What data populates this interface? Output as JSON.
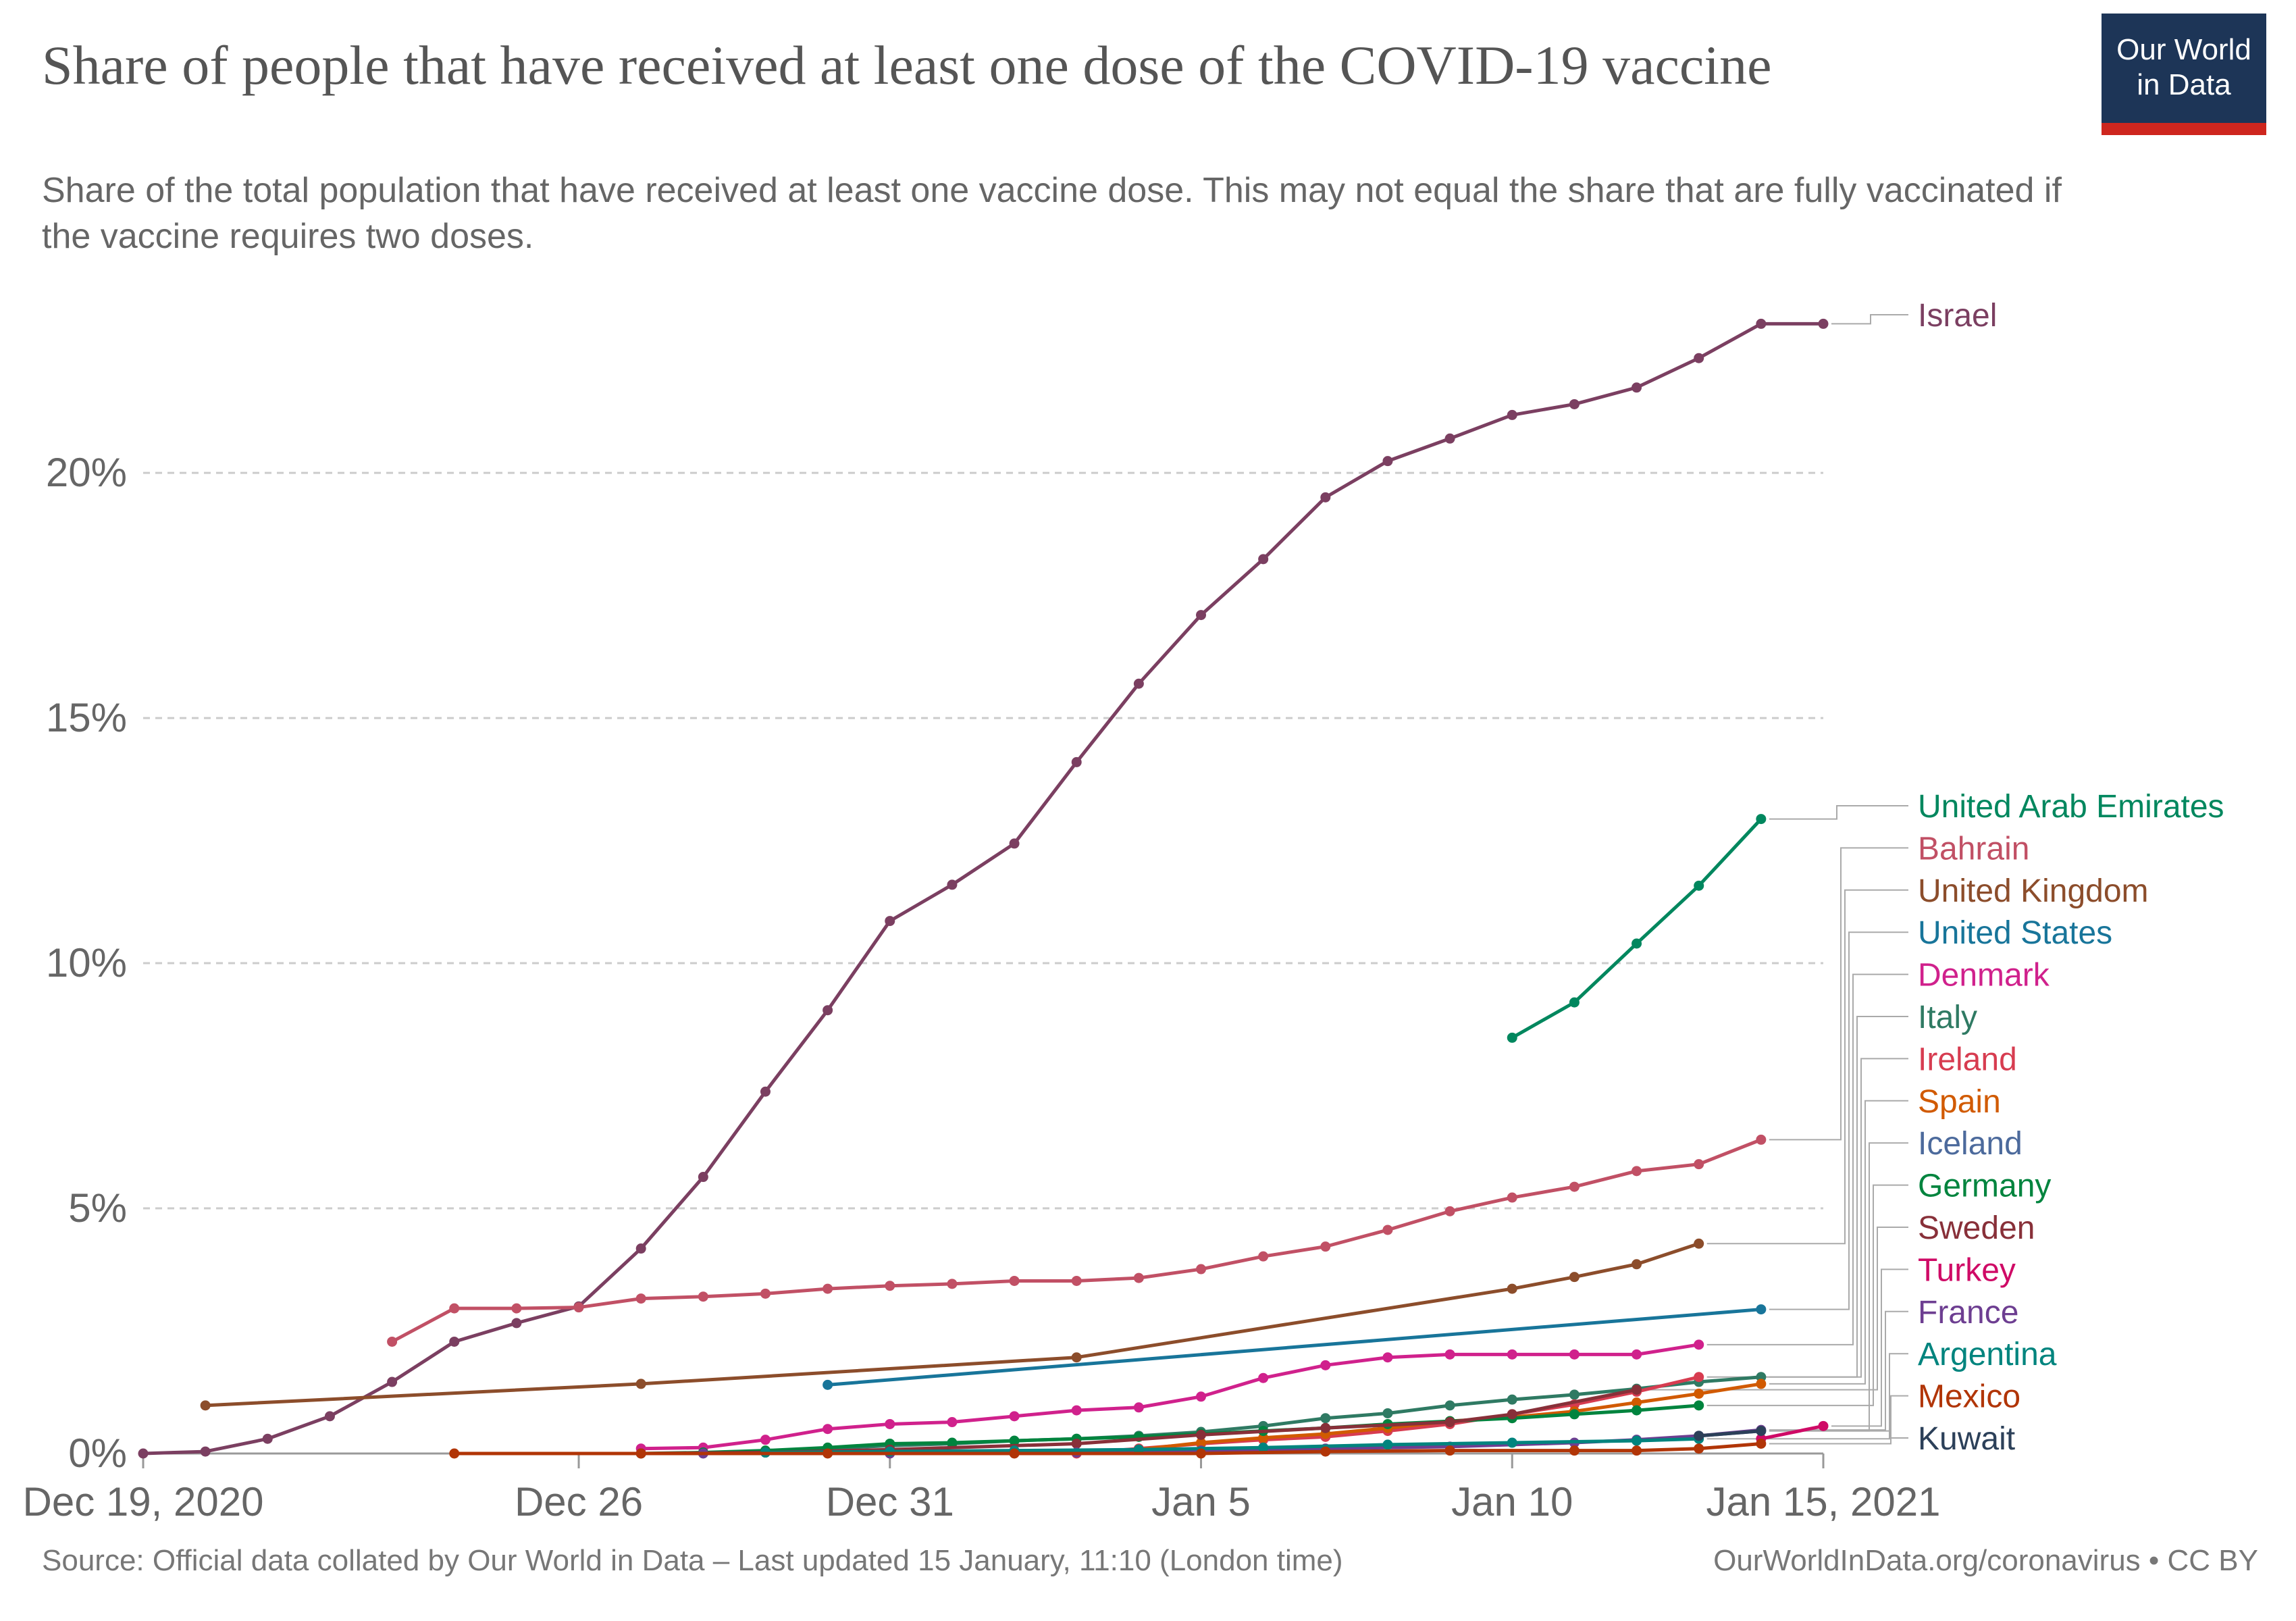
{
  "title": "Share of people that have received at least one dose of the COVID-19 vaccine",
  "subtitle": "Share of the total population that have received at least one vaccine dose. This may not equal the share that are fully vaccinated if the vaccine requires two doses.",
  "logo": {
    "line1": "Our World",
    "line2": "in Data"
  },
  "footer": {
    "source": "Source: Official data collated by Our World in Data – Last updated 15 January, 11:10 (London time)",
    "license": "OurWorldInData.org/coronavirus • CC BY"
  },
  "chart_data": {
    "type": "line",
    "x_range": [
      "2020-12-19",
      "2021-01-15"
    ],
    "x_ticks": [
      {
        "date": "2020-12-19",
        "label": "Dec 19, 2020"
      },
      {
        "date": "2020-12-26",
        "label": "Dec 26"
      },
      {
        "date": "2020-12-31",
        "label": "Dec 31"
      },
      {
        "date": "2021-01-05",
        "label": "Jan 5"
      },
      {
        "date": "2021-01-10",
        "label": "Jan 10"
      },
      {
        "date": "2021-01-15",
        "label": "Jan 15, 2021"
      }
    ],
    "ylim": [
      0,
      23.5
    ],
    "y_ticks": [
      {
        "value": 0,
        "label": "0%"
      },
      {
        "value": 5,
        "label": "5%"
      },
      {
        "value": 10,
        "label": "10%"
      },
      {
        "value": 15,
        "label": "15%"
      },
      {
        "value": 20,
        "label": "20%"
      }
    ],
    "grid": "horizontal dashed",
    "legend": "right, labels at line ends",
    "series": [
      {
        "name": "Israel",
        "color": "#7b3f61",
        "points": [
          [
            "2020-12-19",
            0.0
          ],
          [
            "2020-12-20",
            0.04
          ],
          [
            "2020-12-21",
            0.3
          ],
          [
            "2020-12-22",
            0.76
          ],
          [
            "2020-12-23",
            1.46
          ],
          [
            "2020-12-24",
            2.28
          ],
          [
            "2020-12-25",
            2.66
          ],
          [
            "2020-12-26",
            3.0
          ],
          [
            "2020-12-27",
            4.18
          ],
          [
            "2020-12-28",
            5.64
          ],
          [
            "2020-12-29",
            7.38
          ],
          [
            "2020-12-30",
            9.04
          ],
          [
            "2020-12-31",
            10.86
          ],
          [
            "2021-01-01",
            11.6
          ],
          [
            "2021-01-02",
            12.44
          ],
          [
            "2021-01-03",
            14.1
          ],
          [
            "2021-01-04",
            15.7
          ],
          [
            "2021-01-05",
            17.1
          ],
          [
            "2021-01-06",
            18.24
          ],
          [
            "2021-01-07",
            19.5
          ],
          [
            "2021-01-08",
            20.24
          ],
          [
            "2021-01-09",
            20.7
          ],
          [
            "2021-01-10",
            21.18
          ],
          [
            "2021-01-11",
            21.4
          ],
          [
            "2021-01-12",
            21.74
          ],
          [
            "2021-01-13",
            22.34
          ],
          [
            "2021-01-14",
            23.04
          ],
          [
            "2021-01-15",
            23.04
          ]
        ]
      },
      {
        "name": "United Arab Emirates",
        "color": "#00875e",
        "points": [
          [
            "2021-01-10",
            8.48
          ],
          [
            "2021-01-11",
            9.2
          ],
          [
            "2021-01-12",
            10.4
          ],
          [
            "2021-01-13",
            11.58
          ],
          [
            "2021-01-14",
            12.94
          ]
        ]
      },
      {
        "name": "Bahrain",
        "color": "#c15065",
        "points": [
          [
            "2020-12-23",
            2.28
          ],
          [
            "2020-12-24",
            2.96
          ],
          [
            "2020-12-25",
            2.96
          ],
          [
            "2020-12-26",
            2.98
          ],
          [
            "2020-12-27",
            3.16
          ],
          [
            "2020-12-28",
            3.2
          ],
          [
            "2020-12-29",
            3.26
          ],
          [
            "2020-12-30",
            3.36
          ],
          [
            "2020-12-31",
            3.42
          ],
          [
            "2021-01-01",
            3.46
          ],
          [
            "2021-01-02",
            3.52
          ],
          [
            "2021-01-03",
            3.52
          ],
          [
            "2021-01-04",
            3.58
          ],
          [
            "2021-01-05",
            3.76
          ],
          [
            "2021-01-06",
            4.02
          ],
          [
            "2021-01-07",
            4.22
          ],
          [
            "2021-01-08",
            4.56
          ],
          [
            "2021-01-09",
            4.94
          ],
          [
            "2021-01-10",
            5.22
          ],
          [
            "2021-01-11",
            5.44
          ],
          [
            "2021-01-12",
            5.76
          ],
          [
            "2021-01-13",
            5.9
          ],
          [
            "2021-01-14",
            6.4
          ]
        ]
      },
      {
        "name": "United Kingdom",
        "color": "#8c4d2b",
        "points": [
          [
            "2020-12-20",
            0.98
          ],
          [
            "2020-12-27",
            1.42
          ],
          [
            "2021-01-03",
            1.96
          ],
          [
            "2021-01-10",
            3.36
          ],
          [
            "2021-01-11",
            3.6
          ],
          [
            "2021-01-12",
            3.86
          ],
          [
            "2021-01-13",
            4.28
          ]
        ]
      },
      {
        "name": "United States",
        "color": "#18759a",
        "points": [
          [
            "2020-12-30",
            1.4
          ],
          [
            "2021-01-14",
            2.94
          ]
        ]
      },
      {
        "name": "Denmark",
        "color": "#d0218c",
        "points": [
          [
            "2020-12-27",
            0.1
          ],
          [
            "2020-12-28",
            0.12
          ],
          [
            "2020-12-29",
            0.28
          ],
          [
            "2020-12-30",
            0.5
          ],
          [
            "2020-12-31",
            0.6
          ],
          [
            "2021-01-01",
            0.64
          ],
          [
            "2021-01-02",
            0.76
          ],
          [
            "2021-01-03",
            0.88
          ],
          [
            "2021-01-04",
            0.94
          ],
          [
            "2021-01-05",
            1.16
          ],
          [
            "2021-01-06",
            1.54
          ],
          [
            "2021-01-07",
            1.8
          ],
          [
            "2021-01-08",
            1.96
          ],
          [
            "2021-01-09",
            2.02
          ],
          [
            "2021-01-10",
            2.02
          ],
          [
            "2021-01-11",
            2.02
          ],
          [
            "2021-01-12",
            2.02
          ],
          [
            "2021-01-13",
            2.22
          ]
        ]
      },
      {
        "name": "Italy",
        "color": "#2f7a63",
        "points": [
          [
            "2020-12-29",
            0.02
          ],
          [
            "2020-12-30",
            0.1
          ],
          [
            "2020-12-31",
            0.16
          ],
          [
            "2021-01-01",
            0.2
          ],
          [
            "2021-01-02",
            0.26
          ],
          [
            "2021-01-03",
            0.3
          ],
          [
            "2021-01-04",
            0.36
          ],
          [
            "2021-01-05",
            0.44
          ],
          [
            "2021-01-06",
            0.56
          ],
          [
            "2021-01-07",
            0.72
          ],
          [
            "2021-01-08",
            0.82
          ],
          [
            "2021-01-09",
            0.98
          ],
          [
            "2021-01-10",
            1.1
          ],
          [
            "2021-01-11",
            1.2
          ],
          [
            "2021-01-12",
            1.32
          ],
          [
            "2021-01-13",
            1.46
          ],
          [
            "2021-01-14",
            1.56
          ]
        ]
      },
      {
        "name": "Ireland",
        "color": "#d73c50",
        "points": [
          [
            "2021-01-03",
            0.0
          ],
          [
            "2021-01-04",
            0.1
          ],
          [
            "2021-01-05",
            0.2
          ],
          [
            "2021-01-06",
            0.28
          ],
          [
            "2021-01-07",
            0.34
          ],
          [
            "2021-01-08",
            0.46
          ],
          [
            "2021-01-09",
            0.6
          ],
          [
            "2021-01-10",
            0.8
          ],
          [
            "2021-01-11",
            1.0
          ],
          [
            "2021-01-12",
            1.26
          ],
          [
            "2021-01-13",
            1.56
          ]
        ]
      },
      {
        "name": "Spain",
        "color": "#d15a00",
        "points": [
          [
            "2021-01-04",
            0.08
          ],
          [
            "2021-01-05",
            0.22
          ],
          [
            "2021-01-06",
            0.32
          ],
          [
            "2021-01-07",
            0.4
          ],
          [
            "2021-01-08",
            0.52
          ],
          [
            "2021-01-09",
            0.66
          ],
          [
            "2021-01-10",
            0.74
          ],
          [
            "2021-01-11",
            0.86
          ],
          [
            "2021-01-12",
            1.04
          ],
          [
            "2021-01-13",
            1.22
          ],
          [
            "2021-01-14",
            1.42
          ]
        ]
      },
      {
        "name": "Iceland",
        "color": "#4c6a9c",
        "points": [
          [
            "2021-01-13",
            0.36
          ],
          [
            "2021-01-14",
            0.46
          ]
        ]
      },
      {
        "name": "Germany",
        "color": "#00843e",
        "points": [
          [
            "2020-12-27",
            0.0
          ],
          [
            "2020-12-28",
            0.02
          ],
          [
            "2020-12-29",
            0.06
          ],
          [
            "2020-12-30",
            0.12
          ],
          [
            "2020-12-31",
            0.2
          ],
          [
            "2021-01-01",
            0.22
          ],
          [
            "2021-01-02",
            0.26
          ],
          [
            "2021-01-03",
            0.3
          ],
          [
            "2021-01-04",
            0.34
          ],
          [
            "2021-01-05",
            0.4
          ],
          [
            "2021-01-06",
            0.46
          ],
          [
            "2021-01-07",
            0.52
          ],
          [
            "2021-01-08",
            0.6
          ],
          [
            "2021-01-09",
            0.66
          ],
          [
            "2021-01-10",
            0.72
          ],
          [
            "2021-01-11",
            0.8
          ],
          [
            "2021-01-12",
            0.88
          ],
          [
            "2021-01-13",
            0.98
          ]
        ]
      },
      {
        "name": "Sweden",
        "color": "#883039",
        "points": [
          [
            "2020-12-27",
            0.0
          ],
          [
            "2020-12-29",
            0.02
          ],
          [
            "2020-12-31",
            0.08
          ],
          [
            "2021-01-03",
            0.2
          ],
          [
            "2021-01-05",
            0.38
          ],
          [
            "2021-01-07",
            0.52
          ],
          [
            "2021-01-09",
            0.64
          ],
          [
            "2021-01-10",
            0.8
          ],
          [
            "2021-01-12",
            1.3
          ]
        ]
      },
      {
        "name": "Turkey",
        "color": "#cf0a66",
        "points": [
          [
            "2021-01-14",
            0.3
          ],
          [
            "2021-01-15",
            0.56
          ]
        ]
      },
      {
        "name": "France",
        "color": "#6d3e91",
        "points": [
          [
            "2020-12-28",
            0.0
          ],
          [
            "2020-12-31",
            0.0
          ],
          [
            "2021-01-03",
            0.02
          ],
          [
            "2021-01-05",
            0.06
          ],
          [
            "2021-01-07",
            0.1
          ],
          [
            "2021-01-09",
            0.14
          ],
          [
            "2021-01-11",
            0.22
          ],
          [
            "2021-01-12",
            0.28
          ],
          [
            "2021-01-13",
            0.36
          ],
          [
            "2021-01-14",
            0.48
          ]
        ]
      },
      {
        "name": "Argentina",
        "color": "#00847e",
        "points": [
          [
            "2020-12-29",
            0.02
          ],
          [
            "2020-12-31",
            0.04
          ],
          [
            "2021-01-02",
            0.06
          ],
          [
            "2021-01-04",
            0.08
          ],
          [
            "2021-01-06",
            0.12
          ],
          [
            "2021-01-08",
            0.18
          ],
          [
            "2021-01-10",
            0.22
          ],
          [
            "2021-01-12",
            0.26
          ],
          [
            "2021-01-13",
            0.3
          ]
        ]
      },
      {
        "name": "Mexico",
        "color": "#b13507",
        "points": [
          [
            "2020-12-24",
            0.0
          ],
          [
            "2020-12-27",
            0.0
          ],
          [
            "2020-12-30",
            0.0
          ],
          [
            "2021-01-02",
            0.0
          ],
          [
            "2021-01-05",
            0.0
          ],
          [
            "2021-01-07",
            0.04
          ],
          [
            "2021-01-09",
            0.06
          ],
          [
            "2021-01-11",
            0.06
          ],
          [
            "2021-01-12",
            0.06
          ],
          [
            "2021-01-13",
            0.1
          ],
          [
            "2021-01-14",
            0.2
          ]
        ]
      },
      {
        "name": "Kuwait",
        "color": "#2c4059",
        "points": [
          [
            "2021-01-13",
            0.36
          ],
          [
            "2021-01-14",
            0.46
          ]
        ]
      }
    ],
    "labels": [
      {
        "name": "Israel",
        "color": "#7b3f61"
      },
      {
        "name": "United Arab Emirates",
        "color": "#00875e"
      },
      {
        "name": "Bahrain",
        "color": "#c15065"
      },
      {
        "name": "United Kingdom",
        "color": "#8c4d2b"
      },
      {
        "name": "United States",
        "color": "#18759a"
      },
      {
        "name": "Denmark",
        "color": "#d0218c"
      },
      {
        "name": "Italy",
        "color": "#2f7a63"
      },
      {
        "name": "Ireland",
        "color": "#d73c50"
      },
      {
        "name": "Spain",
        "color": "#d15a00"
      },
      {
        "name": "Iceland",
        "color": "#4c6a9c"
      },
      {
        "name": "Germany",
        "color": "#00843e"
      },
      {
        "name": "Sweden",
        "color": "#883039"
      },
      {
        "name": "Turkey",
        "color": "#cf0a66"
      },
      {
        "name": "France",
        "color": "#6d3e91"
      },
      {
        "name": "Argentina",
        "color": "#00847e"
      },
      {
        "name": "Mexico",
        "color": "#b13507"
      },
      {
        "name": "Kuwait",
        "color": "#2c4059"
      }
    ]
  }
}
